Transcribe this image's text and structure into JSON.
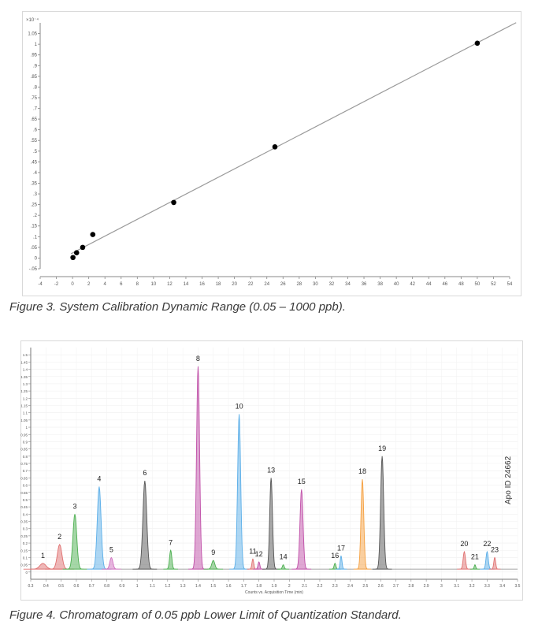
{
  "chart_data": [
    {
      "type": "scatter",
      "trendline": true,
      "multiplier_label": "×10⁻⁴",
      "x": [
        0.05,
        0.5,
        1.25,
        2.5,
        12.5,
        25,
        50
      ],
      "y": [
        0.0025,
        0.025,
        0.05,
        0.11,
        0.26,
        0.52,
        1.005
      ],
      "xlim": [
        -4,
        54
      ],
      "ylim": [
        -0.05,
        1.1
      ],
      "xticks": [
        -4,
        -2,
        0,
        2,
        4,
        6,
        8,
        10,
        12,
        14,
        16,
        18,
        20,
        22,
        24,
        26,
        28,
        30,
        32,
        34,
        36,
        38,
        40,
        42,
        44,
        46,
        48,
        50,
        52,
        54
      ],
      "yticks": [
        -0.05,
        0,
        0.05,
        0.1,
        0.15,
        0.2,
        0.25,
        0.3,
        0.35,
        0.4,
        0.45,
        0.5,
        0.55,
        0.6,
        0.65,
        0.7,
        0.75,
        0.8,
        0.85,
        0.9,
        0.95,
        1,
        1.05
      ],
      "grid": false,
      "caption": "Figure 3. System Calibration Dynamic Range (0.05 – 1000 ppb).",
      "colors": {
        "line": "#9a9a9a",
        "points": "#000000"
      }
    },
    {
      "type": "line",
      "xlim": [
        0.3,
        3.5
      ],
      "ylim": [
        -0.05,
        1.55
      ],
      "xticks": [
        0.3,
        0.4,
        0.5,
        0.6,
        0.7,
        0.8,
        0.9,
        1.0,
        1.1,
        1.2,
        1.3,
        1.4,
        1.5,
        1.6,
        1.7,
        1.8,
        1.9,
        2.0,
        2.1,
        2.2,
        2.3,
        2.4,
        2.5,
        2.6,
        2.7,
        2.8,
        2.9,
        3.0,
        3.1,
        3.2,
        3.3,
        3.4,
        3.5
      ],
      "xtick_labels": [
        "0.3",
        "0.4",
        "0.5",
        "0.6",
        "0.7",
        "0.8",
        "0.9",
        "1",
        "1.1",
        "1.2",
        "1.3",
        "1.4",
        "1.5",
        "1.6",
        "1.7",
        "1.8",
        "1.9",
        "2",
        "2.1",
        "2.2",
        "2.3",
        "2.4",
        "2.5",
        "2.6",
        "2.7",
        "2.8",
        "2.9",
        "3",
        "3.1",
        "3.2",
        "3.3",
        "3.4",
        "3.5"
      ],
      "yticks": [
        0,
        0.05,
        0.1,
        0.15,
        0.2,
        0.25,
        0.3,
        0.35,
        0.4,
        0.45,
        0.5,
        0.55,
        0.6,
        0.65,
        0.7,
        0.75,
        0.8,
        0.85,
        0.9,
        0.95,
        1,
        1.05,
        1.1,
        1.15,
        1.2,
        1.25,
        1.3,
        1.35,
        1.4,
        1.45,
        1.5
      ],
      "xlabel": "Counts vs. Acquisition Time (min)",
      "grid": true,
      "baseline": 0.02,
      "peaks": [
        {
          "label": "1",
          "rt": 0.38,
          "height": 0.04,
          "width": 0.04,
          "color": "#e07070"
        },
        {
          "label": "2",
          "rt": 0.49,
          "height": 0.17,
          "width": 0.03,
          "color": "#e07070"
        },
        {
          "label": "3",
          "rt": 0.59,
          "height": 0.38,
          "width": 0.025,
          "color": "#4caf50"
        },
        {
          "label": "4",
          "rt": 0.75,
          "height": 0.57,
          "width": 0.025,
          "color": "#5aaee8"
        },
        {
          "label": "5",
          "rt": 0.83,
          "height": 0.08,
          "width": 0.02,
          "color": "#d070c0"
        },
        {
          "label": "6",
          "rt": 1.05,
          "height": 0.61,
          "width": 0.025,
          "color": "#555555"
        },
        {
          "label": "7",
          "rt": 1.22,
          "height": 0.13,
          "width": 0.015,
          "color": "#4caf50"
        },
        {
          "label": "8",
          "rt": 1.4,
          "height": 1.4,
          "width": 0.02,
          "color": "#c04fa8"
        },
        {
          "label": "9",
          "rt": 1.5,
          "height": 0.06,
          "width": 0.02,
          "color": "#4caf50"
        },
        {
          "label": "10",
          "rt": 1.67,
          "height": 1.07,
          "width": 0.02,
          "color": "#5aaee8"
        },
        {
          "label": "11",
          "rt": 1.76,
          "height": 0.07,
          "width": 0.012,
          "color": "#e07070"
        },
        {
          "label": "12",
          "rt": 1.8,
          "height": 0.05,
          "width": 0.012,
          "color": "#c04fa8"
        },
        {
          "label": "13",
          "rt": 1.88,
          "height": 0.63,
          "width": 0.018,
          "color": "#555555"
        },
        {
          "label": "14",
          "rt": 1.96,
          "height": 0.03,
          "width": 0.012,
          "color": "#4caf50"
        },
        {
          "label": "15",
          "rt": 2.08,
          "height": 0.55,
          "width": 0.02,
          "color": "#c04fa8"
        },
        {
          "label": "16",
          "rt": 2.3,
          "height": 0.04,
          "width": 0.012,
          "color": "#4caf50"
        },
        {
          "label": "17",
          "rt": 2.34,
          "height": 0.09,
          "width": 0.012,
          "color": "#5aaee8"
        },
        {
          "label": "18",
          "rt": 2.48,
          "height": 0.62,
          "width": 0.018,
          "color": "#f5a040"
        },
        {
          "label": "19",
          "rt": 2.61,
          "height": 0.78,
          "width": 0.02,
          "color": "#555555"
        },
        {
          "label": "20",
          "rt": 3.15,
          "height": 0.12,
          "width": 0.015,
          "color": "#e07070"
        },
        {
          "label": "21",
          "rt": 3.22,
          "height": 0.03,
          "width": 0.01,
          "color": "#4caf50"
        },
        {
          "label": "22",
          "rt": 3.3,
          "height": 0.12,
          "width": 0.015,
          "color": "#5aaee8"
        },
        {
          "label": "23",
          "rt": 3.35,
          "height": 0.08,
          "width": 0.012,
          "color": "#e07070"
        }
      ],
      "caption": "Figure 4. Chromatogram of 0.05 ppb Lower Limit of Quantization Standard.",
      "side_label": "Apo ID 24662"
    }
  ]
}
